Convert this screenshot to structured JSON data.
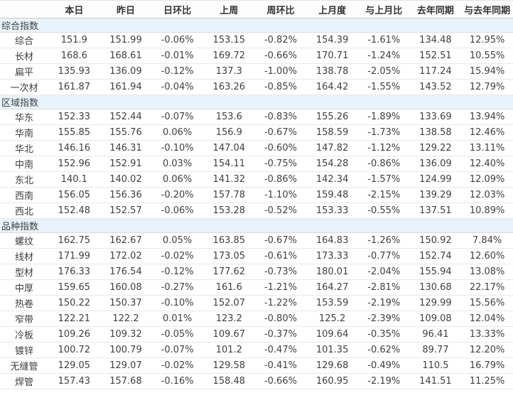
{
  "table": {
    "corner_label": "",
    "columns": [
      "本日",
      "昨日",
      "日环比",
      "上周",
      "周环比",
      "上月度",
      "与上月比",
      "去年同期",
      "与去年同期"
    ],
    "sections": [
      {
        "title": "综合指数",
        "rows": [
          {
            "label": "综合",
            "values": [
              "151.9",
              "151.99",
              "-0.06%",
              "153.15",
              "-0.82%",
              "154.39",
              "-1.61%",
              "134.48",
              "12.95%"
            ]
          },
          {
            "label": "长材",
            "values": [
              "168.6",
              "168.61",
              "-0.01%",
              "169.72",
              "-0.66%",
              "170.71",
              "-1.24%",
              "152.51",
              "10.55%"
            ]
          },
          {
            "label": "扁平",
            "values": [
              "135.93",
              "136.09",
              "-0.12%",
              "137.3",
              "-1.00%",
              "138.78",
              "-2.05%",
              "117.24",
              "15.94%"
            ]
          },
          {
            "label": "一次材",
            "values": [
              "161.87",
              "161.94",
              "-0.04%",
              "163.26",
              "-0.85%",
              "164.42",
              "-1.55%",
              "143.52",
              "12.79%"
            ]
          }
        ]
      },
      {
        "title": "区域指数",
        "rows": [
          {
            "label": "华东",
            "values": [
              "152.33",
              "152.44",
              "-0.07%",
              "153.6",
              "-0.83%",
              "155.26",
              "-1.89%",
              "133.69",
              "13.94%"
            ]
          },
          {
            "label": "华南",
            "values": [
              "155.85",
              "155.76",
              "0.06%",
              "156.9",
              "-0.67%",
              "158.59",
              "-1.73%",
              "138.58",
              "12.46%"
            ]
          },
          {
            "label": "华北",
            "values": [
              "146.16",
              "146.31",
              "-0.10%",
              "147.04",
              "-0.60%",
              "147.82",
              "-1.12%",
              "129.22",
              "13.11%"
            ]
          },
          {
            "label": "中南",
            "values": [
              "152.96",
              "152.91",
              "0.03%",
              "154.11",
              "-0.75%",
              "154.28",
              "-0.86%",
              "136.09",
              "12.40%"
            ]
          },
          {
            "label": "东北",
            "values": [
              "140.1",
              "140.02",
              "0.06%",
              "141.32",
              "-0.86%",
              "142.34",
              "-1.57%",
              "124.99",
              "12.09%"
            ]
          },
          {
            "label": "西南",
            "values": [
              "156.05",
              "156.36",
              "-0.20%",
              "157.78",
              "-1.10%",
              "159.48",
              "-2.15%",
              "139.29",
              "12.03%"
            ]
          },
          {
            "label": "西北",
            "values": [
              "152.48",
              "152.57",
              "-0.06%",
              "153.28",
              "-0.52%",
              "153.33",
              "-0.55%",
              "137.51",
              "10.89%"
            ]
          }
        ]
      },
      {
        "title": "品种指数",
        "rows": [
          {
            "label": "螺纹",
            "values": [
              "162.75",
              "162.67",
              "0.05%",
              "163.85",
              "-0.67%",
              "164.83",
              "-1.26%",
              "150.92",
              "7.84%"
            ]
          },
          {
            "label": "线材",
            "values": [
              "171.99",
              "172.02",
              "-0.02%",
              "173.05",
              "-0.61%",
              "173.33",
              "-0.77%",
              "152.74",
              "12.60%"
            ]
          },
          {
            "label": "型材",
            "values": [
              "176.33",
              "176.54",
              "-0.12%",
              "177.62",
              "-0.73%",
              "180.01",
              "-2.04%",
              "155.94",
              "13.08%"
            ]
          },
          {
            "label": "中厚",
            "values": [
              "159.65",
              "160.08",
              "-0.27%",
              "161.6",
              "-1.21%",
              "164.27",
              "-2.81%",
              "130.68",
              "22.17%"
            ]
          },
          {
            "label": "热卷",
            "values": [
              "150.22",
              "150.37",
              "-0.10%",
              "152.07",
              "-1.22%",
              "153.59",
              "-2.19%",
              "129.99",
              "15.56%"
            ]
          },
          {
            "label": "窄带",
            "values": [
              "122.21",
              "122.2",
              "0.01%",
              "123.2",
              "-0.80%",
              "125.2",
              "-2.39%",
              "109.08",
              "12.04%"
            ]
          },
          {
            "label": "冷板",
            "values": [
              "109.26",
              "109.32",
              "-0.05%",
              "109.67",
              "-0.37%",
              "109.64",
              "-0.35%",
              "96.41",
              "13.33%"
            ]
          },
          {
            "label": "镀锌",
            "values": [
              "100.72",
              "100.79",
              "-0.07%",
              "101.2",
              "-0.47%",
              "101.35",
              "-0.62%",
              "89.77",
              "12.20%"
            ]
          },
          {
            "label": "无缝管",
            "values": [
              "129.05",
              "129.07",
              "-0.02%",
              "129.58",
              "-0.41%",
              "129.68",
              "-0.49%",
              "110.5",
              "16.79%"
            ]
          },
          {
            "label": "焊管",
            "values": [
              "157.43",
              "157.68",
              "-0.16%",
              "158.48",
              "-0.66%",
              "160.95",
              "-2.19%",
              "141.51",
              "11.25%"
            ]
          }
        ]
      }
    ]
  },
  "colors": {
    "positive_text": "#e83a3a",
    "negative_text": "#2f9d3f",
    "section_background": "#e9f3fb",
    "header_text": "#333333",
    "value_text": "#404040"
  }
}
